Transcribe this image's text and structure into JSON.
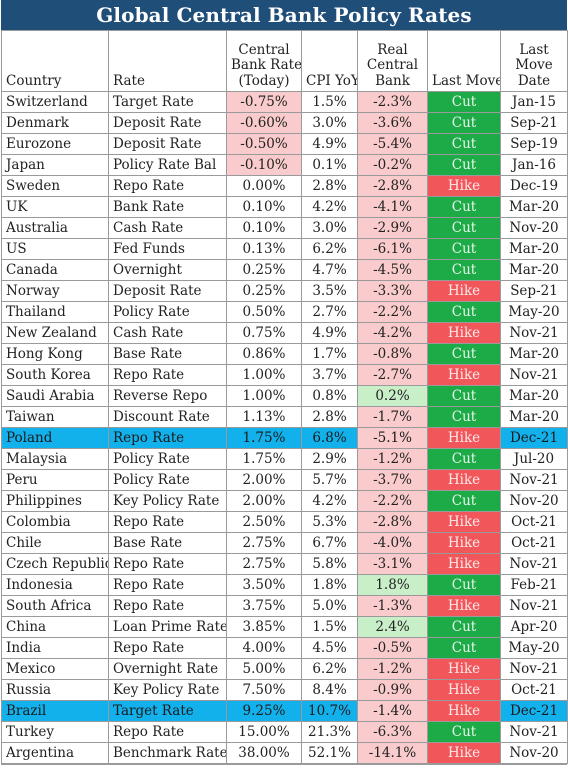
{
  "chart_data": {
    "type": "table",
    "title": "Global Central Bank Policy Rates",
    "columns": [
      "Country",
      "Rate",
      "Central Bank Rate (Today)",
      "CPI YoY",
      "Real Central Bank",
      "Last Move",
      "Last Move Date"
    ],
    "header_lines": {
      "country": [
        "Country"
      ],
      "rate": [
        "Rate"
      ],
      "cb_rate": [
        "Central",
        "Bank Rate",
        "(Today)"
      ],
      "cpi": [
        "CPI YoY"
      ],
      "real": [
        "Real",
        "Central",
        "Bank"
      ],
      "move": [
        "Last Move"
      ],
      "date": [
        "Last",
        "Move",
        "Date"
      ]
    },
    "rows": [
      {
        "country": "Switzerland",
        "rate": "Target Rate",
        "cb_rate": "-0.75%",
        "cpi": "1.5%",
        "real": "-2.3%",
        "move": "Cut",
        "date": "Jan-15"
      },
      {
        "country": "Denmark",
        "rate": "Deposit Rate",
        "cb_rate": "-0.60%",
        "cpi": "3.0%",
        "real": "-3.6%",
        "move": "Cut",
        "date": "Sep-21"
      },
      {
        "country": "Eurozone",
        "rate": "Deposit Rate",
        "cb_rate": "-0.50%",
        "cpi": "4.9%",
        "real": "-5.4%",
        "move": "Cut",
        "date": "Sep-19"
      },
      {
        "country": "Japan",
        "rate": "Policy Rate Bal",
        "cb_rate": "-0.10%",
        "cpi": "0.1%",
        "real": "-0.2%",
        "move": "Cut",
        "date": "Jan-16"
      },
      {
        "country": "Sweden",
        "rate": "Repo Rate",
        "cb_rate": "0.00%",
        "cpi": "2.8%",
        "real": "-2.8%",
        "move": "Hike",
        "date": "Dec-19"
      },
      {
        "country": "UK",
        "rate": "Bank Rate",
        "cb_rate": "0.10%",
        "cpi": "4.2%",
        "real": "-4.1%",
        "move": "Cut",
        "date": "Mar-20"
      },
      {
        "country": "Australia",
        "rate": "Cash Rate",
        "cb_rate": "0.10%",
        "cpi": "3.0%",
        "real": "-2.9%",
        "move": "Cut",
        "date": "Nov-20"
      },
      {
        "country": "US",
        "rate": "Fed Funds",
        "cb_rate": "0.13%",
        "cpi": "6.2%",
        "real": "-6.1%",
        "move": "Cut",
        "date": "Mar-20"
      },
      {
        "country": "Canada",
        "rate": "Overnight",
        "cb_rate": "0.25%",
        "cpi": "4.7%",
        "real": "-4.5%",
        "move": "Cut",
        "date": "Mar-20"
      },
      {
        "country": "Norway",
        "rate": "Deposit Rate",
        "cb_rate": "0.25%",
        "cpi": "3.5%",
        "real": "-3.3%",
        "move": "Hike",
        "date": "Sep-21"
      },
      {
        "country": "Thailand",
        "rate": "Policy Rate",
        "cb_rate": "0.50%",
        "cpi": "2.7%",
        "real": "-2.2%",
        "move": "Cut",
        "date": "May-20"
      },
      {
        "country": "New Zealand",
        "rate": "Cash Rate",
        "cb_rate": "0.75%",
        "cpi": "4.9%",
        "real": "-4.2%",
        "move": "Hike",
        "date": "Nov-21"
      },
      {
        "country": "Hong Kong",
        "rate": "Base Rate",
        "cb_rate": "0.86%",
        "cpi": "1.7%",
        "real": "-0.8%",
        "move": "Cut",
        "date": "Mar-20"
      },
      {
        "country": "South Korea",
        "rate": "Repo Rate",
        "cb_rate": "1.00%",
        "cpi": "3.7%",
        "real": "-2.7%",
        "move": "Hike",
        "date": "Nov-21"
      },
      {
        "country": "Saudi Arabia",
        "rate": "Reverse Repo",
        "cb_rate": "1.00%",
        "cpi": "0.8%",
        "real": "0.2%",
        "move": "Cut",
        "date": "Mar-20"
      },
      {
        "country": "Taiwan",
        "rate": "Discount Rate",
        "cb_rate": "1.13%",
        "cpi": "2.8%",
        "real": "-1.7%",
        "move": "Cut",
        "date": "Mar-20"
      },
      {
        "country": "Poland",
        "rate": "Repo Rate",
        "cb_rate": "1.75%",
        "cpi": "6.8%",
        "real": "-5.1%",
        "move": "Hike",
        "date": "Dec-21",
        "highlight": true
      },
      {
        "country": "Malaysia",
        "rate": "Policy Rate",
        "cb_rate": "1.75%",
        "cpi": "2.9%",
        "real": "-1.2%",
        "move": "Cut",
        "date": "Jul-20"
      },
      {
        "country": "Peru",
        "rate": "Policy Rate",
        "cb_rate": "2.00%",
        "cpi": "5.7%",
        "real": "-3.7%",
        "move": "Hike",
        "date": "Nov-21"
      },
      {
        "country": "Philippines",
        "rate": "Key Policy Rate",
        "cb_rate": "2.00%",
        "cpi": "4.2%",
        "real": "-2.2%",
        "move": "Cut",
        "date": "Nov-20"
      },
      {
        "country": "Colombia",
        "rate": "Repo Rate",
        "cb_rate": "2.50%",
        "cpi": "5.3%",
        "real": "-2.8%",
        "move": "Hike",
        "date": "Oct-21"
      },
      {
        "country": "Chile",
        "rate": "Base Rate",
        "cb_rate": "2.75%",
        "cpi": "6.7%",
        "real": "-4.0%",
        "move": "Hike",
        "date": "Oct-21"
      },
      {
        "country": "Czech Republic",
        "rate": "Repo Rate",
        "cb_rate": "2.75%",
        "cpi": "5.8%",
        "real": "-3.1%",
        "move": "Hike",
        "date": "Nov-21"
      },
      {
        "country": "Indonesia",
        "rate": "Repo Rate",
        "cb_rate": "3.50%",
        "cpi": "1.8%",
        "real": "1.8%",
        "move": "Cut",
        "date": "Feb-21"
      },
      {
        "country": "South Africa",
        "rate": "Repo Rate",
        "cb_rate": "3.75%",
        "cpi": "5.0%",
        "real": "-1.3%",
        "move": "Hike",
        "date": "Nov-21"
      },
      {
        "country": "China",
        "rate": "Loan Prime Rate",
        "cb_rate": "3.85%",
        "cpi": "1.5%",
        "real": "2.4%",
        "move": "Cut",
        "date": "Apr-20"
      },
      {
        "country": "India",
        "rate": "Repo Rate",
        "cb_rate": "4.00%",
        "cpi": "4.5%",
        "real": "-0.5%",
        "move": "Cut",
        "date": "May-20"
      },
      {
        "country": "Mexico",
        "rate": "Overnight Rate",
        "cb_rate": "5.00%",
        "cpi": "6.2%",
        "real": "-1.2%",
        "move": "Hike",
        "date": "Nov-21"
      },
      {
        "country": "Russia",
        "rate": "Key Policy Rate",
        "cb_rate": "7.50%",
        "cpi": "8.4%",
        "real": "-0.9%",
        "move": "Hike",
        "date": "Oct-21"
      },
      {
        "country": "Brazil",
        "rate": "Target Rate",
        "cb_rate": "9.25%",
        "cpi": "10.7%",
        "real": "-1.4%",
        "move": "Hike",
        "date": "Dec-21",
        "highlight": true
      },
      {
        "country": "Turkey",
        "rate": "Repo Rate",
        "cb_rate": "15.00%",
        "cpi": "21.3%",
        "real": "-6.3%",
        "move": "Cut",
        "date": "Nov-21"
      },
      {
        "country": "Argentina",
        "rate": "Benchmark Rate",
        "cb_rate": "38.00%",
        "cpi": "52.1%",
        "real": "-14.1%",
        "move": "Hike",
        "date": "Nov-20"
      }
    ]
  },
  "colors": {
    "title_bg": "#1f4e79",
    "highlight_row": "#12b1ec",
    "cut": "#1cab47",
    "hike": "#f0565a",
    "negative_cell": "#f9cbcc",
    "positive_cell": "#c9efc9"
  }
}
